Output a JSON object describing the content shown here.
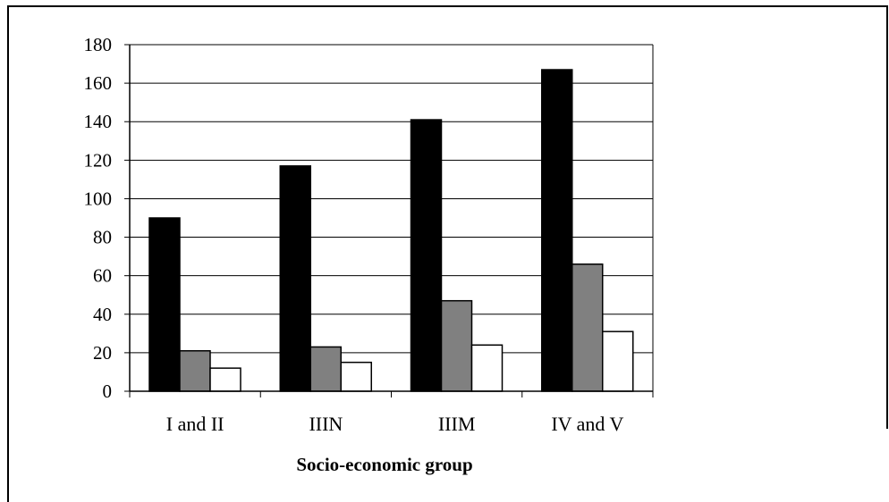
{
  "chart_data": {
    "type": "bar",
    "title": "",
    "xlabel": "Socio-economic group",
    "ylabel": "",
    "ylim": [
      0,
      180
    ],
    "yticks": [
      "0",
      "20",
      "40",
      "60",
      "80",
      "100",
      "120",
      "140",
      "160",
      "180"
    ],
    "categories": [
      "I and II",
      "IIIN",
      "IIIM",
      "IV and V"
    ],
    "series": [
      {
        "values": [
          90,
          117,
          141,
          167
        ],
        "color": "#000000"
      },
      {
        "values": [
          21,
          23,
          47,
          66
        ],
        "color": "#808080"
      },
      {
        "values": [
          12,
          15,
          24,
          31
        ],
        "color": "#ffffff"
      }
    ],
    "grid": true,
    "legend": "none"
  }
}
